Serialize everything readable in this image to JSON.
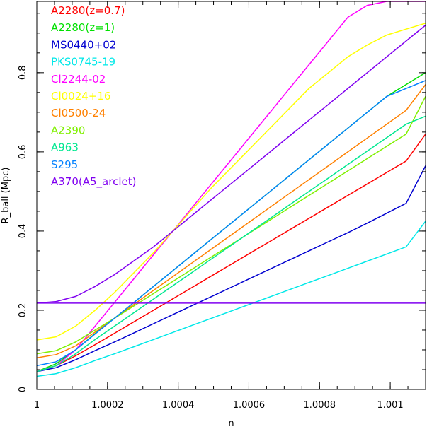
{
  "chart_data": {
    "type": "line",
    "title": "",
    "xlabel": "n",
    "ylabel": "R_ball (Mpc)",
    "xlim": [
      1,
      1.0011
    ],
    "ylim": [
      0,
      0.98
    ],
    "x_ticks": [
      1,
      1.0002,
      1.0004,
      1.0006,
      1.0008,
      1.001
    ],
    "x_tick_labels": [
      "1",
      "1.0002",
      "1.0004",
      "1.0006",
      "1.0008",
      "1.001"
    ],
    "y_ticks": [
      0,
      0.2,
      0.4,
      0.6,
      0.8
    ],
    "y_tick_labels": [
      "0",
      "0.2",
      "0.4",
      "0.6",
      "0.8"
    ],
    "grid": false,
    "legend_position": "top-left",
    "x": [
      1.0,
      1.000055,
      1.00011,
      1.000165,
      1.00022,
      1.000275,
      1.00033,
      1.000385,
      1.00044,
      1.000495,
      1.00055,
      1.000605,
      1.00066,
      1.000715,
      1.00077,
      1.000825,
      1.00088,
      1.000935,
      1.00099,
      1.001045,
      1.0011
    ],
    "series": [
      {
        "name": "A2280(z=0.7)",
        "color": "#ff0000",
        "values": [
          0.045,
          0.06,
          0.085,
          0.113,
          0.142,
          0.171,
          0.2,
          0.229,
          0.258,
          0.287,
          0.316,
          0.345,
          0.374,
          0.403,
          0.432,
          0.461,
          0.49,
          0.519,
          0.548,
          0.577,
          0.645
        ]
      },
      {
        "name": "A2280(z=1)",
        "color": "#00e000",
        "values": [
          0.045,
          0.065,
          0.1,
          0.141,
          0.18,
          0.22,
          0.26,
          0.3,
          0.34,
          0.38,
          0.42,
          0.46,
          0.5,
          0.54,
          0.58,
          0.62,
          0.66,
          0.7,
          0.74,
          0.77,
          0.8
        ]
      },
      {
        "name": "MS0440+02",
        "color": "#0000d0",
        "values": [
          0.045,
          0.055,
          0.075,
          0.098,
          0.12,
          0.143,
          0.166,
          0.189,
          0.212,
          0.235,
          0.258,
          0.281,
          0.304,
          0.327,
          0.35,
          0.373,
          0.396,
          0.42,
          0.445,
          0.47,
          0.565
        ]
      },
      {
        "name": "PKS0745-19",
        "color": "#00e8e8",
        "values": [
          0.033,
          0.04,
          0.055,
          0.073,
          0.09,
          0.108,
          0.126,
          0.144,
          0.162,
          0.18,
          0.198,
          0.216,
          0.234,
          0.252,
          0.27,
          0.288,
          0.306,
          0.324,
          0.342,
          0.36,
          0.425
        ]
      },
      {
        "name": "Cl2244-02",
        "color": "#ff00ff",
        "values": [
          0.045,
          0.06,
          0.1,
          0.16,
          0.22,
          0.28,
          0.34,
          0.4,
          0.46,
          0.52,
          0.58,
          0.64,
          0.7,
          0.76,
          0.82,
          0.88,
          0.94,
          0.97,
          0.98,
          0.98,
          0.98
        ]
      },
      {
        "name": "Cl0024+16",
        "color": "#ffff00",
        "values": [
          0.125,
          0.133,
          0.16,
          0.2,
          0.245,
          0.295,
          0.345,
          0.4,
          0.455,
          0.51,
          0.56,
          0.61,
          0.66,
          0.71,
          0.76,
          0.8,
          0.84,
          0.87,
          0.895,
          0.91,
          0.925
        ]
      },
      {
        "name": "Cl0500-24",
        "color": "#ff8000",
        "values": [
          0.08,
          0.088,
          0.11,
          0.145,
          0.18,
          0.215,
          0.25,
          0.285,
          0.32,
          0.355,
          0.39,
          0.425,
          0.46,
          0.495,
          0.53,
          0.565,
          0.6,
          0.635,
          0.67,
          0.705,
          0.77
        ]
      },
      {
        "name": "A2390",
        "color": "#80f000",
        "values": [
          0.09,
          0.098,
          0.12,
          0.15,
          0.18,
          0.211,
          0.242,
          0.273,
          0.304,
          0.335,
          0.366,
          0.397,
          0.428,
          0.459,
          0.49,
          0.521,
          0.552,
          0.583,
          0.614,
          0.645,
          0.74
        ]
      },
      {
        "name": "A963",
        "color": "#00e890",
        "values": [
          0.045,
          0.06,
          0.09,
          0.126,
          0.16,
          0.194,
          0.228,
          0.262,
          0.296,
          0.33,
          0.364,
          0.398,
          0.432,
          0.466,
          0.5,
          0.534,
          0.568,
          0.602,
          0.636,
          0.67,
          0.69
        ]
      },
      {
        "name": "S295",
        "color": "#0080ff",
        "values": [
          0.06,
          0.07,
          0.1,
          0.14,
          0.18,
          0.22,
          0.26,
          0.3,
          0.34,
          0.38,
          0.42,
          0.46,
          0.5,
          0.54,
          0.58,
          0.62,
          0.66,
          0.7,
          0.74,
          0.76,
          0.78
        ]
      },
      {
        "name": "A370(A5_arclet)",
        "color": "#8000f0",
        "values": [
          0.218,
          0.222,
          0.235,
          0.26,
          0.29,
          0.325,
          0.36,
          0.4,
          0.44,
          0.48,
          0.52,
          0.56,
          0.6,
          0.64,
          0.68,
          0.72,
          0.76,
          0.8,
          0.84,
          0.88,
          0.92
        ]
      },
      {
        "name": "",
        "color": "#8000f0",
        "values": [
          0.218,
          0.218,
          0.218,
          0.218,
          0.218,
          0.218,
          0.218,
          0.218,
          0.218,
          0.218,
          0.218,
          0.218,
          0.218,
          0.218,
          0.218,
          0.218,
          0.218,
          0.218,
          0.218,
          0.218,
          0.218
        ]
      }
    ]
  }
}
